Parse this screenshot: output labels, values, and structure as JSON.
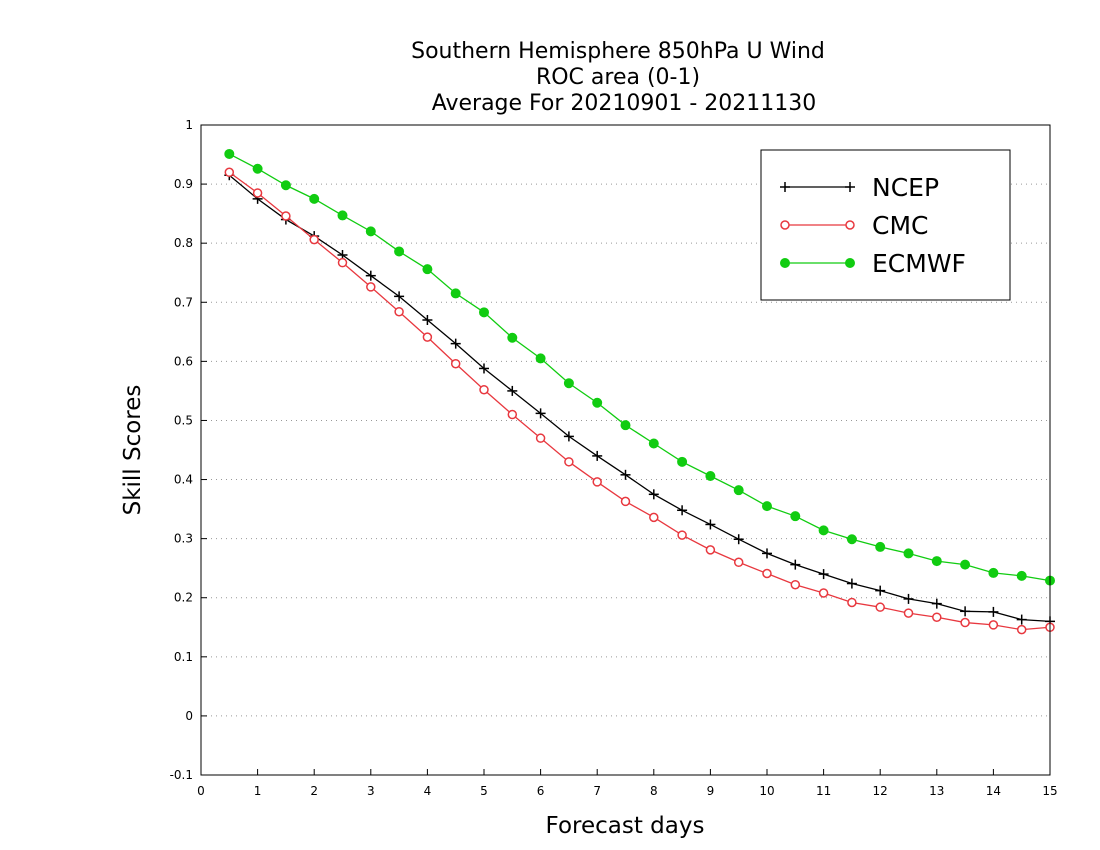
{
  "chart_data": {
    "type": "line",
    "title_lines": [
      "Southern Hemisphere 850hPa U Wind",
      "ROC area (0-1)",
      "Average For 20210901 - 20211130"
    ],
    "xlabel": "Forecast days",
    "ylabel": "Skill Scores",
    "xlim": [
      0,
      15
    ],
    "ylim": [
      -0.1,
      1
    ],
    "x_ticks": [
      "0",
      "1",
      "2",
      "3",
      "4",
      "5",
      "6",
      "7",
      "8",
      "9",
      "10",
      "11",
      "12",
      "13",
      "14",
      "15"
    ],
    "y_ticks": [
      "-0.1",
      "0",
      "0.1",
      "0.2",
      "0.3",
      "0.4",
      "0.5",
      "0.6",
      "0.7",
      "0.8",
      "0.9",
      "1"
    ],
    "y_grid": true,
    "legend_position": "top-right",
    "x": [
      0.5,
      1,
      1.5,
      2,
      2.5,
      3,
      3.5,
      4,
      4.5,
      5,
      5.5,
      6,
      6.5,
      7,
      7.5,
      8,
      8.5,
      9,
      9.5,
      10,
      10.5,
      11,
      11.5,
      12,
      12.5,
      13,
      13.5,
      14,
      14.5,
      15
    ],
    "series": [
      {
        "name": "NCEP",
        "color": "#000000",
        "marker": "plus",
        "values": [
          0.915,
          0.875,
          0.84,
          0.812,
          0.78,
          0.745,
          0.71,
          0.67,
          0.63,
          0.588,
          0.55,
          0.512,
          0.473,
          0.44,
          0.408,
          0.375,
          0.348,
          0.324,
          0.299,
          0.275,
          0.256,
          0.24,
          0.224,
          0.212,
          0.198,
          0.19,
          0.177,
          0.176,
          0.163,
          0.16
        ]
      },
      {
        "name": "CMC",
        "color": "#e8383f",
        "marker": "open-circle",
        "values": [
          0.92,
          0.885,
          0.846,
          0.806,
          0.767,
          0.726,
          0.684,
          0.641,
          0.596,
          0.552,
          0.51,
          0.47,
          0.43,
          0.396,
          0.363,
          0.336,
          0.306,
          0.281,
          0.26,
          0.241,
          0.222,
          0.208,
          0.192,
          0.184,
          0.174,
          0.167,
          0.158,
          0.154,
          0.146,
          0.15
        ]
      },
      {
        "name": "ECMWF",
        "color": "#11cc11",
        "marker": "filled-circle",
        "values": [
          0.951,
          0.926,
          0.898,
          0.875,
          0.847,
          0.82,
          0.786,
          0.756,
          0.715,
          0.683,
          0.64,
          0.605,
          0.563,
          0.53,
          0.492,
          0.461,
          0.43,
          0.406,
          0.382,
          0.355,
          0.338,
          0.314,
          0.299,
          0.286,
          0.275,
          0.262,
          0.256,
          0.242,
          0.237,
          0.229
        ]
      }
    ]
  }
}
